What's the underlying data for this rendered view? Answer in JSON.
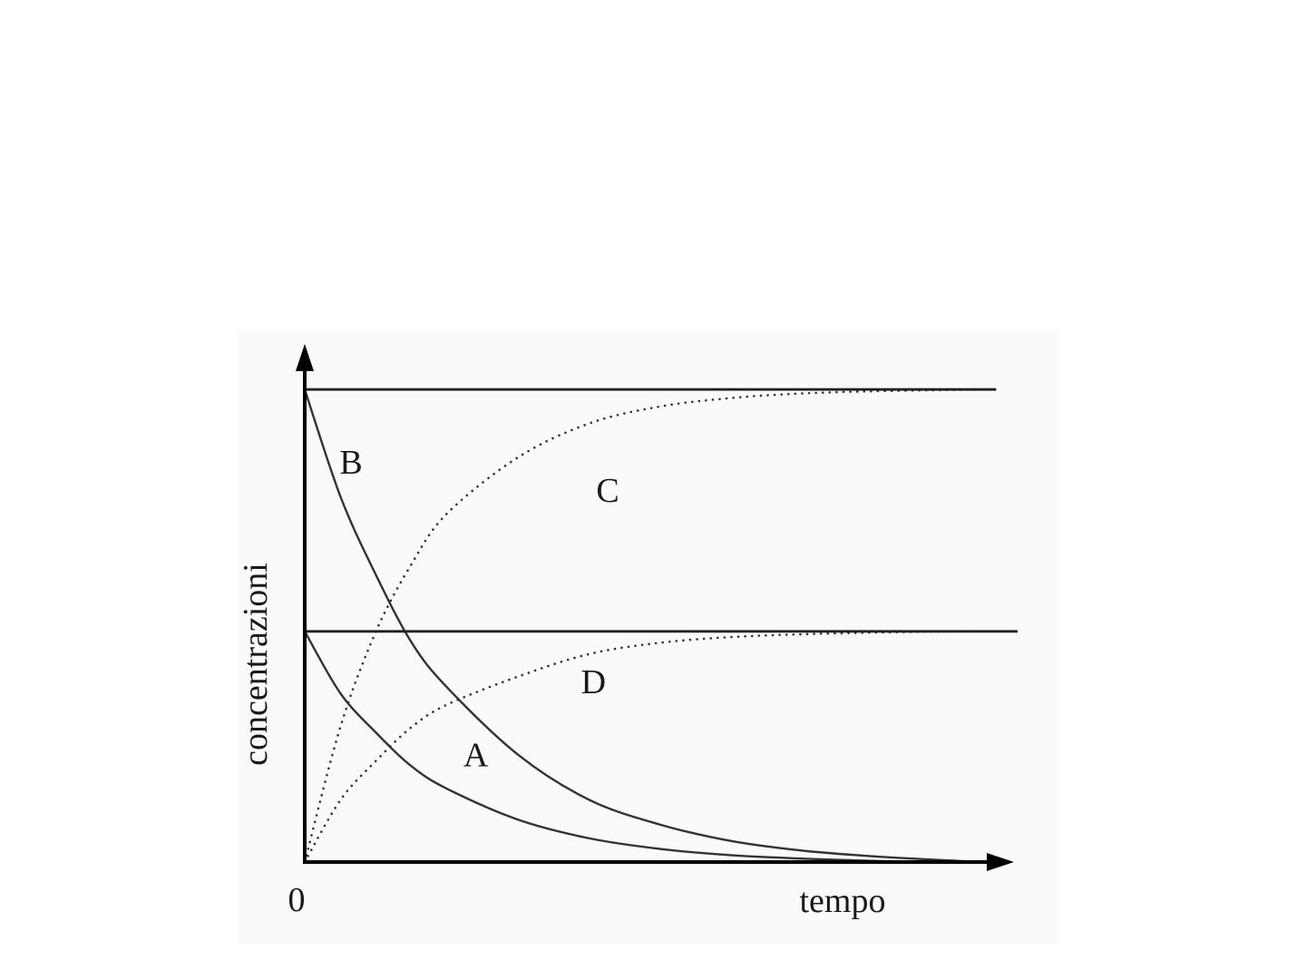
{
  "chart_data": {
    "type": "line",
    "xlabel": "tempo",
    "ylabel": "concentrazioni",
    "x_tick_labels": [
      "0"
    ],
    "xlim": [
      0,
      10
    ],
    "ylim": [
      0,
      1.0
    ],
    "grid": false,
    "legend": "none",
    "series": [
      {
        "name": "B",
        "style": "solid",
        "color": "#333333",
        "x": [
          0,
          0.5,
          1,
          1.5,
          2,
          3,
          4,
          5,
          6,
          7,
          8,
          9,
          9.5
        ],
        "y": [
          0.84,
          0.65,
          0.51,
          0.39,
          0.31,
          0.19,
          0.11,
          0.066,
          0.037,
          0.02,
          0.01,
          0.003,
          0.0
        ]
      },
      {
        "name": "A",
        "style": "solid",
        "color": "#333333",
        "x": [
          0,
          0.5,
          1,
          1.5,
          2,
          3,
          4,
          5,
          6,
          7,
          8,
          9,
          9.5
        ],
        "y": [
          0.41,
          0.3,
          0.23,
          0.17,
          0.13,
          0.075,
          0.042,
          0.023,
          0.012,
          0.006,
          0.002,
          0.001,
          0.0
        ]
      },
      {
        "name": "C",
        "style": "dotted",
        "color": "#333333",
        "x": [
          0,
          0.5,
          1,
          1.5,
          2,
          3,
          4,
          5,
          6,
          7,
          8,
          9,
          9.5
        ],
        "y": [
          0.0,
          0.24,
          0.41,
          0.53,
          0.62,
          0.72,
          0.78,
          0.81,
          0.825,
          0.833,
          0.837,
          0.839,
          0.84
        ]
      },
      {
        "name": "D",
        "style": "dotted",
        "color": "#333333",
        "x": [
          0,
          0.5,
          1,
          1.5,
          2,
          3,
          4,
          5,
          6,
          7,
          8,
          9,
          9.5
        ],
        "y": [
          0.0,
          0.11,
          0.18,
          0.24,
          0.28,
          0.33,
          0.37,
          0.39,
          0.4,
          0.405,
          0.408,
          0.41,
          0.41
        ]
      },
      {
        "name": "",
        "style": "solid",
        "color": "#222222",
        "x": [
          0,
          9.7
        ],
        "y": [
          0.84,
          0.84
        ]
      },
      {
        "name": "",
        "style": "solid",
        "color": "#222222",
        "x": [
          0,
          10
        ],
        "y": [
          0.41,
          0.41
        ]
      }
    ],
    "curve_labels": [
      {
        "text": "B",
        "series": "B",
        "x": 0.65,
        "y": 0.69
      },
      {
        "text": "C",
        "series": "C",
        "x": 4.25,
        "y": 0.64
      },
      {
        "text": "D",
        "series": "D",
        "x": 4.05,
        "y": 0.3
      },
      {
        "text": "A",
        "series": "A",
        "x": 2.4,
        "y": 0.17
      }
    ]
  }
}
